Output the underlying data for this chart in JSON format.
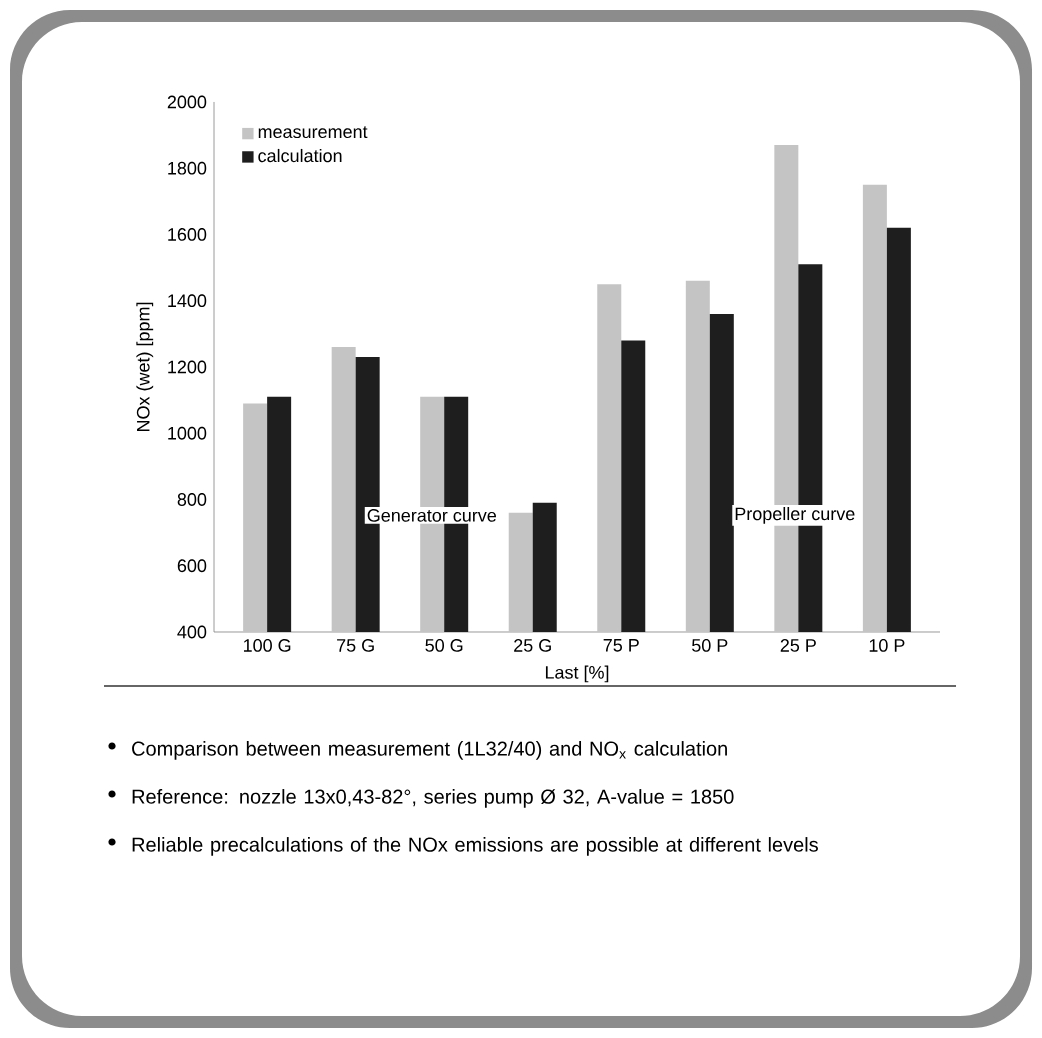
{
  "chart_data": {
    "type": "bar",
    "xlabel": "Last [%]",
    "ylabel": "NOx (wet) [ppm]",
    "categories": [
      "100 G",
      "75 G",
      "50 G",
      "25 G",
      "75 P",
      "50 P",
      "25 P",
      "10 P"
    ],
    "series": [
      {
        "name": "measurement",
        "color": "#c4c4c4",
        "values": [
          1090,
          1260,
          1110,
          760,
          1450,
          1460,
          1870,
          1750
        ]
      },
      {
        "name": "calculation",
        "color": "#1e1e1e",
        "values": [
          1110,
          1230,
          1110,
          790,
          1280,
          1360,
          1510,
          1620
        ]
      }
    ],
    "ylim": [
      400,
      2000
    ],
    "yticks": [
      400,
      600,
      800,
      1000,
      1200,
      1400,
      1600,
      1800,
      2000
    ],
    "legend": "top left",
    "grid": false,
    "annotations": [
      "Generator curve",
      "Propeller curve",
      "Comparison between measurement (1L32/40) and NO$_{x}$ calculation",
      "Reference: nozzle 13x0,43-82°, series pump Ø 32, A-value = 1850",
      "Reliable precalculations of the NOx emissions are possible at different levels"
    ]
  }
}
